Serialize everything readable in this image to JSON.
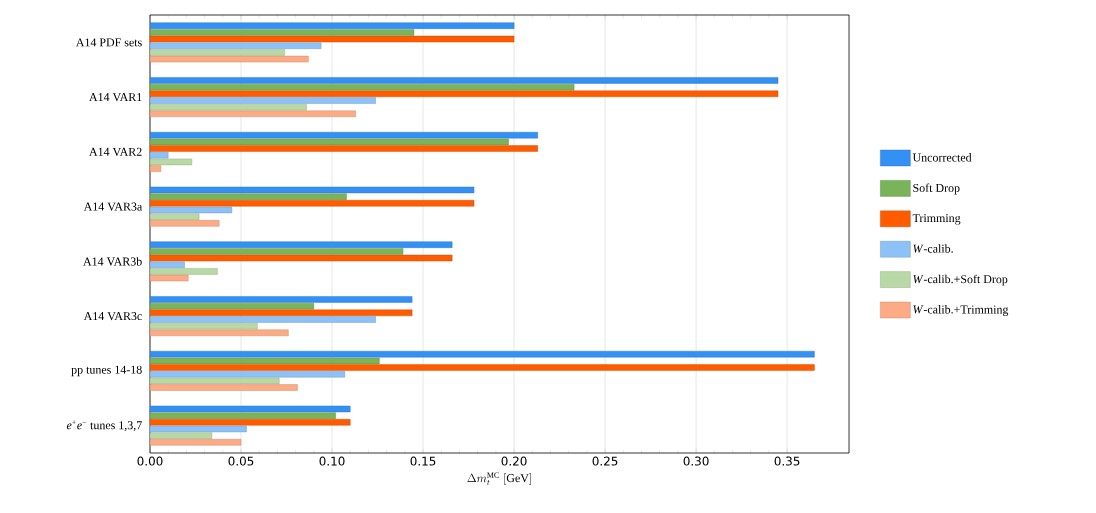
{
  "chart_data": {
    "type": "bar",
    "orientation": "horizontal",
    "xlabel": "\\Delta m_{t}^{\\mathrm{MC}}\\;[\\mathrm{GeV}]",
    "categories": [
      "A14 PDF sets",
      "A14 VAR1",
      "A14 VAR2",
      "A14 VAR3a",
      "A14 VAR3b",
      "A14 VAR3c",
      "pp tunes 14-18",
      "*e*$^{+}$*e*$^{−}$ tunes 1,3,7"
    ],
    "series": [
      {
        "name": "Uncorrected",
        "color": "#3391f5",
        "values": [
          0.2,
          0.345,
          0.213,
          0.178,
          0.166,
          0.144,
          0.365,
          0.11
        ]
      },
      {
        "name": "Soft Drop",
        "color": "#79b35a",
        "values": [
          0.145,
          0.233,
          0.197,
          0.108,
          0.139,
          0.09,
          0.126,
          0.102
        ]
      },
      {
        "name": "Trimming",
        "color": "#ff5c00",
        "values": [
          0.2,
          0.345,
          0.213,
          0.178,
          0.166,
          0.144,
          0.365,
          0.11
        ]
      },
      {
        "name": "*W*-calib.",
        "color": "#8cc2f8",
        "values": [
          0.094,
          0.124,
          0.01,
          0.045,
          0.019,
          0.124,
          0.107,
          0.053
        ]
      },
      {
        "name": "*W*-calib.+Soft Drop",
        "color": "#b8d9a5",
        "values": [
          0.074,
          0.086,
          0.023,
          0.027,
          0.037,
          0.059,
          0.071,
          0.034
        ]
      },
      {
        "name": "*W*-calib.+Trimming",
        "color": "#fdab85",
        "values": [
          0.087,
          0.113,
          0.006,
          0.038,
          0.021,
          0.076,
          0.081,
          0.05
        ]
      }
    ],
    "xlim": [
      0,
      0.384
    ],
    "xticks": [
      {
        "value": 0,
        "label": "0.00"
      },
      {
        "value": 0.05,
        "label": "0.05"
      },
      {
        "value": 0.1,
        "label": "0.10"
      },
      {
        "value": 0.15,
        "label": "0.15"
      },
      {
        "value": 0.2,
        "label": "0.20"
      },
      {
        "value": 0.25,
        "label": "0.25"
      },
      {
        "value": 0.3,
        "label": "0.30"
      },
      {
        "value": 0.35,
        "label": "0.35"
      }
    ],
    "grid": "x",
    "legend": "right"
  }
}
